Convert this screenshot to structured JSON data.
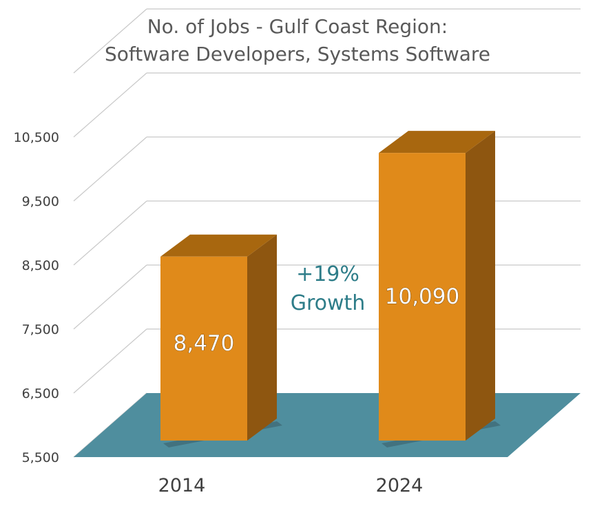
{
  "chart_data": {
    "type": "bar",
    "title_lines": [
      "No. of Jobs - Gulf Coast Region:",
      "Software Developers, Systems Software"
    ],
    "categories": [
      "2014",
      "2024"
    ],
    "values": [
      8470,
      10090
    ],
    "data_labels": [
      "8,470",
      "10,090"
    ],
    "ylim": [
      5500,
      11500
    ],
    "yticks": [
      5500,
      6500,
      7500,
      8500,
      9500,
      10500
    ],
    "ytick_labels": [
      "5,500",
      "6,500",
      "7,500",
      "8,500",
      "9,500",
      "10,500"
    ],
    "grid": true,
    "annotation": {
      "lines": [
        "+19%",
        "Growth"
      ],
      "color": "#2e7d89"
    },
    "colors": {
      "bar_front": "#e08a1a",
      "bar_side": "#8e5610",
      "bar_top": "#a8670f",
      "floor": "#4f8e9e",
      "grid": "#c8c8c8"
    }
  }
}
